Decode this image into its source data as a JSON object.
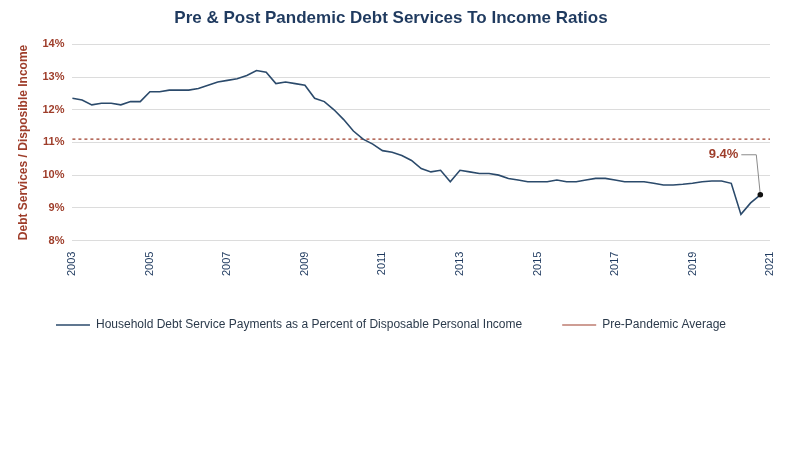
{
  "chart_data": {
    "type": "line",
    "title": "Pre & Post Pandemic Debt Services To Income Ratios",
    "y_label": "Debt Services / Disposible Income",
    "categories": [
      "2003",
      null,
      null,
      null,
      null,
      null,
      null,
      null,
      "2005",
      null,
      null,
      null,
      null,
      null,
      null,
      null,
      "2007",
      null,
      null,
      null,
      null,
      null,
      null,
      null,
      "2009",
      null,
      null,
      null,
      null,
      null,
      null,
      null,
      "2011",
      null,
      null,
      null,
      null,
      null,
      null,
      null,
      "2013",
      null,
      null,
      null,
      null,
      null,
      null,
      null,
      "2015",
      null,
      null,
      null,
      null,
      null,
      null,
      null,
      "2017",
      null,
      null,
      null,
      null,
      null,
      null,
      null,
      "2019",
      null,
      null,
      null,
      null,
      null,
      null,
      null,
      "2021"
    ],
    "series": [
      {
        "name": "Household Debt Service Payments as a Percent of Disposable Personal Income",
        "color": "#2b4a6b",
        "line_style": "solid",
        "values": [
          12.35,
          12.3,
          12.15,
          12.2,
          12.2,
          12.15,
          12.25,
          12.25,
          12.55,
          12.55,
          12.6,
          12.6,
          12.6,
          12.65,
          12.75,
          12.85,
          12.9,
          12.95,
          13.05,
          13.2,
          13.15,
          12.8,
          12.85,
          12.8,
          12.75,
          12.35,
          12.25,
          12.0,
          11.7,
          11.35,
          11.1,
          10.95,
          10.75,
          10.7,
          10.6,
          10.45,
          10.2,
          10.1,
          10.15,
          9.8,
          10.15,
          10.1,
          10.05,
          10.05,
          10.0,
          9.9,
          9.85,
          9.8,
          9.8,
          9.8,
          9.85,
          9.8,
          9.8,
          9.85,
          9.9,
          9.9,
          9.85,
          9.8,
          9.8,
          9.8,
          9.75,
          9.7,
          9.7,
          9.72,
          9.75,
          9.8,
          9.82,
          9.82,
          9.75,
          8.8,
          9.15,
          9.4,
          null
        ]
      },
      {
        "name": "Pre-Pandemic Average",
        "color": "#9e3d2a",
        "line_style": "dashed",
        "values": [
          11.1,
          11.1,
          11.1,
          11.1,
          11.1,
          11.1,
          11.1,
          11.1,
          11.1,
          11.1,
          11.1,
          11.1,
          11.1,
          11.1,
          11.1,
          11.1,
          11.1,
          11.1,
          11.1,
          11.1,
          11.1,
          11.1,
          11.1,
          11.1,
          11.1,
          11.1,
          11.1,
          11.1,
          11.1,
          11.1,
          11.1,
          11.1,
          11.1,
          11.1,
          11.1,
          11.1,
          11.1,
          11.1,
          11.1,
          11.1,
          11.1,
          11.1,
          11.1,
          11.1,
          11.1,
          11.1,
          11.1,
          11.1,
          11.1,
          11.1,
          11.1,
          11.1,
          11.1,
          11.1,
          11.1,
          11.1,
          11.1,
          11.1,
          11.1,
          11.1,
          11.1,
          11.1,
          11.1,
          11.1,
          11.1,
          11.1,
          11.1,
          11.1,
          11.1,
          11.1,
          11.1,
          11.1,
          11.1
        ]
      }
    ],
    "ylim": [
      8,
      14
    ],
    "yticks": [
      {
        "value": 8,
        "label": "8%"
      },
      {
        "value": 9,
        "label": "9%"
      },
      {
        "value": 10,
        "label": "10%"
      },
      {
        "value": 11,
        "label": "11%"
      },
      {
        "value": 12,
        "label": "12%"
      },
      {
        "value": 13,
        "label": "13%"
      },
      {
        "value": 14,
        "label": "14%"
      }
    ],
    "grid": true,
    "legend": "bottom",
    "annotations": [
      {
        "text": "9.4%",
        "index": 71,
        "value": 9.4
      }
    ]
  }
}
